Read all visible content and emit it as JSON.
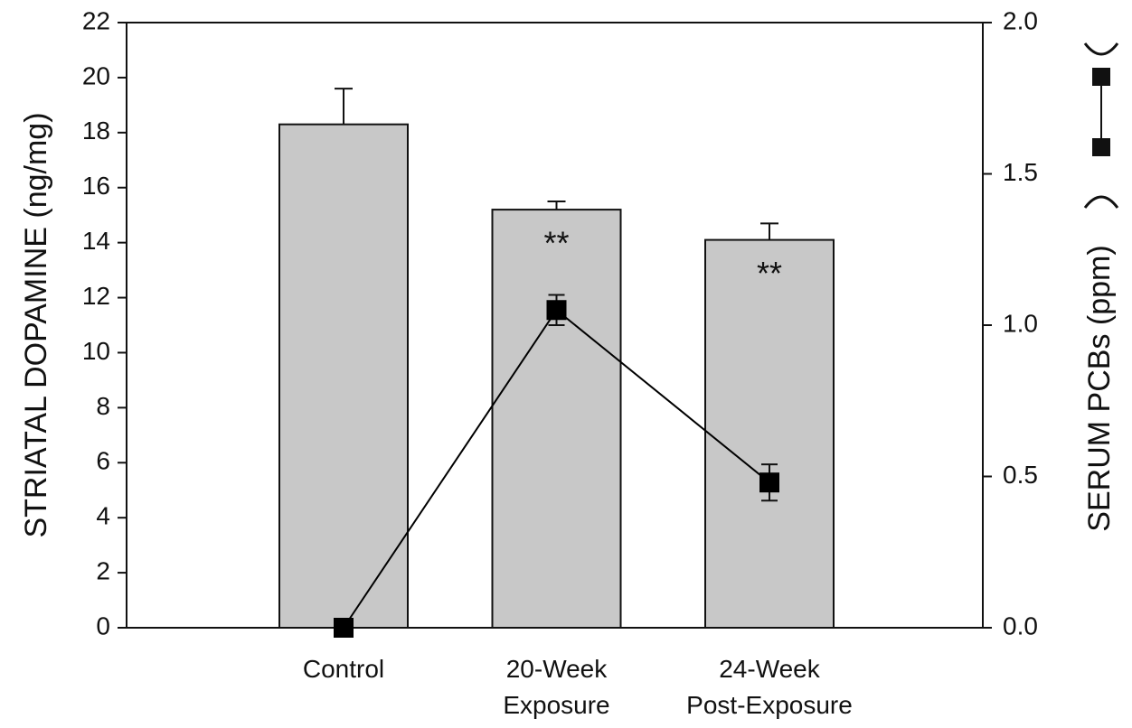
{
  "chart_data": {
    "type": "bar",
    "y_label": "STRIATAL DOPAMINE (ng/mg)",
    "y2_label": "SERUM PCBs (ppm)",
    "categories": [
      [
        "Control"
      ],
      [
        "20-Week",
        "Exposure"
      ],
      [
        "24-Week",
        "Post-Exposure"
      ]
    ],
    "series": [
      {
        "type": "bar",
        "axis": "y",
        "color": "#c8c8c8",
        "values": [
          18.3,
          15.2,
          14.1
        ],
        "error": [
          1.3,
          0.3,
          0.6
        ]
      },
      {
        "type": "line",
        "axis": "y2",
        "color": "#000000",
        "values": [
          0.0,
          1.05,
          0.48
        ],
        "error": [
          0,
          0.05,
          0.06
        ]
      }
    ],
    "annotations": [
      null,
      "**",
      "**"
    ],
    "ylim": [
      0,
      22
    ],
    "yticks": [
      0,
      2,
      4,
      6,
      8,
      10,
      12,
      14,
      16,
      18,
      20,
      22
    ],
    "y2lim": [
      0,
      2
    ],
    "y2ticks": [
      {
        "value": 0,
        "label": "0.0"
      },
      0.5,
      {
        "value": 1,
        "label": "1.0"
      },
      1.5,
      {
        "value": 2,
        "label": "2.0"
      }
    ]
  }
}
